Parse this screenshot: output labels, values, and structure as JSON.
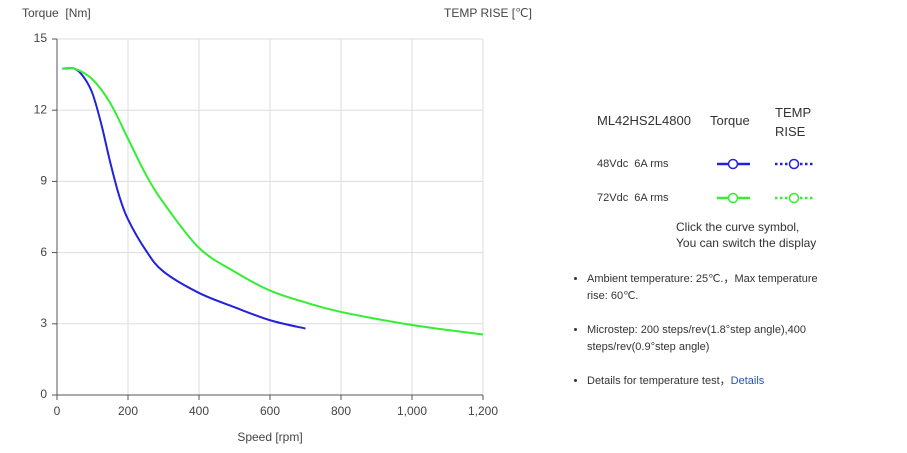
{
  "chart_data": {
    "type": "line",
    "y_title": "Torque  [Nm]",
    "y2_title": "TEMP RISE [℃]",
    "x_title": "Speed [rpm]",
    "xlim": [
      0,
      1200
    ],
    "xticks": [
      0,
      200,
      400,
      600,
      800,
      {
        "value": 1000,
        "label": "1,000"
      },
      {
        "value": 1200,
        "label": "1,200"
      }
    ],
    "ylim": [
      0,
      15
    ],
    "yticks": [
      0,
      3,
      6,
      9,
      12,
      15
    ],
    "grid": true,
    "series": [
      {
        "name": "48Vdc  6A rms",
        "color": "#2222dd",
        "x": [
          15,
          50,
          75,
          100,
          125,
          150,
          175,
          200,
          250,
          300,
          400,
          500,
          600,
          700
        ],
        "values": [
          13.75,
          13.75,
          13.4,
          12.7,
          11.4,
          9.8,
          8.4,
          7.4,
          6.1,
          5.2,
          4.3,
          3.7,
          3.15,
          2.8
        ]
      },
      {
        "name": "72Vdc  6A rms",
        "color": "#33ee33",
        "x": [
          15,
          50,
          100,
          150,
          200,
          250,
          300,
          400,
          500,
          600,
          700,
          800,
          1000,
          1200
        ],
        "values": [
          13.75,
          13.75,
          13.3,
          12.3,
          10.8,
          9.3,
          8.1,
          6.2,
          5.2,
          4.4,
          3.9,
          3.5,
          2.95,
          2.55
        ]
      }
    ]
  },
  "panel": {
    "model": "ML42HS2L4800",
    "col_torque": "Torque",
    "col_temp": "TEMP RISE",
    "hint": [
      "Click the curve symbol,",
      "You can switch the display"
    ],
    "notes": [
      "Ambient temperature: 25℃.，Max temperature rise: 60℃.",
      "Microstep: 200 steps/rev(1.8°step angle),400 steps/rev(0.9°step angle)",
      "Details for temperature test，"
    ],
    "details_link": "Details"
  }
}
